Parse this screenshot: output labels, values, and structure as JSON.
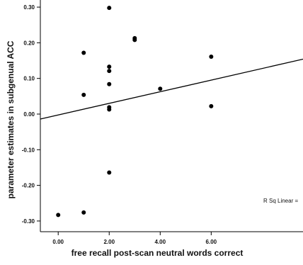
{
  "chart_data": {
    "type": "scatter",
    "title": "",
    "xlabel": "free recall post-scan neutral words correct",
    "ylabel": "parameter estimates in subgenual ACC",
    "xlim": [
      -0.7,
      9.6
    ],
    "ylim": [
      -0.33,
      0.32
    ],
    "x_ticks": [
      0,
      2,
      4,
      6
    ],
    "x_tick_labels": [
      "0.00",
      "2.00",
      "4.00",
      "6.00"
    ],
    "y_ticks": [
      0.3,
      0.2,
      0.1,
      0.0,
      -0.1,
      -0.2,
      -0.3
    ],
    "y_tick_labels": [
      "0.30",
      "0.20",
      "0.10",
      "0.00",
      "-0.10",
      "-0.20",
      "-0.30"
    ],
    "points": [
      {
        "x": 0,
        "y": -0.283
      },
      {
        "x": 1,
        "y": 0.172
      },
      {
        "x": 1,
        "y": 0.054
      },
      {
        "x": 1,
        "y": -0.276
      },
      {
        "x": 2,
        "y": 0.298
      },
      {
        "x": 2,
        "y": 0.133
      },
      {
        "x": 2,
        "y": 0.121
      },
      {
        "x": 2,
        "y": 0.084
      },
      {
        "x": 2,
        "y": 0.019
      },
      {
        "x": 2,
        "y": 0.013
      },
      {
        "x": 2,
        "y": -0.164
      },
      {
        "x": 3,
        "y": 0.213
      },
      {
        "x": 3,
        "y": 0.208
      },
      {
        "x": 4,
        "y": 0.071
      },
      {
        "x": 6,
        "y": 0.161
      },
      {
        "x": 6,
        "y": 0.022
      }
    ],
    "fit_line": {
      "x": [
        -0.7,
        9.6
      ],
      "y": [
        -0.014,
        0.154
      ]
    },
    "annotation": "R Sq Linear ="
  }
}
